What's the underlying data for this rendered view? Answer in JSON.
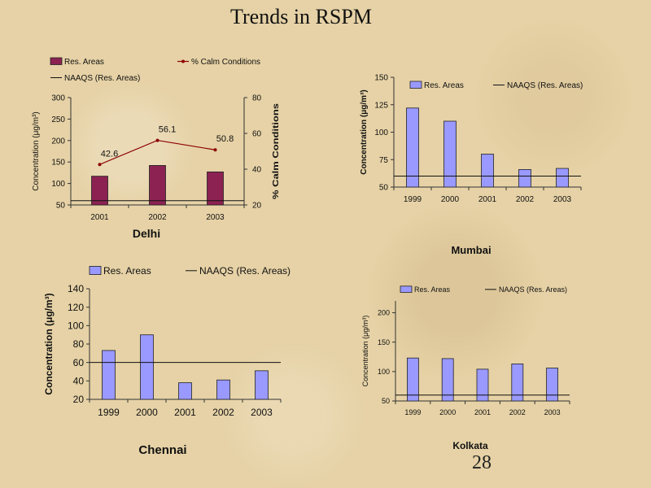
{
  "title": "Trends in RSPM",
  "page_number": "28",
  "colors": {
    "delhi_bar": "#8b2252",
    "blue_bar": "#9999ff",
    "line": "#8b0000"
  },
  "chart_data": [
    {
      "id": "delhi",
      "type": "bar",
      "city": "Delhi",
      "categories": [
        "2001",
        "2002",
        "2003"
      ],
      "series": [
        {
          "name": "Res. Areas",
          "type": "bar",
          "values": [
            117,
            142,
            127
          ]
        },
        {
          "name": "% Calm Conditions",
          "type": "line",
          "axis": "right",
          "values": [
            42.6,
            56.1,
            50.8
          ]
        },
        {
          "name": "NAAQS (Res. Areas)",
          "type": "hline",
          "value": 60
        }
      ],
      "ylabel": "Concentration (μg/m³)",
      "ylabel_right": "% Calm Conditions",
      "ylim": [
        50,
        300
      ],
      "yticks": [
        50,
        100,
        150,
        200,
        250,
        300
      ],
      "ylim_right": [
        20,
        80
      ],
      "yticks_right": [
        20,
        40,
        60,
        80
      ]
    },
    {
      "id": "mumbai",
      "type": "bar",
      "city": "Mumbai",
      "categories": [
        "1999",
        "2000",
        "2001",
        "2002",
        "2003"
      ],
      "series": [
        {
          "name": "Res. Areas",
          "type": "bar",
          "values": [
            122,
            110,
            80,
            66,
            67
          ]
        },
        {
          "name": "NAAQS (Res. Areas)",
          "type": "hline",
          "value": 60
        }
      ],
      "ylabel": "Concentration (μg/m³)",
      "ylim": [
        50,
        150
      ],
      "yticks": [
        50,
        75,
        100,
        125,
        150
      ]
    },
    {
      "id": "chennai",
      "type": "bar",
      "city": "Chennai",
      "categories": [
        "1999",
        "2000",
        "2001",
        "2002",
        "2003"
      ],
      "series": [
        {
          "name": "Res. Areas",
          "type": "bar",
          "values": [
            73,
            90,
            38,
            41,
            51
          ]
        },
        {
          "name": "NAAQS (Res. Areas)",
          "type": "hline",
          "value": 60
        }
      ],
      "ylabel": "Concentration (μg/m³)",
      "ylim": [
        20,
        140
      ],
      "yticks": [
        20,
        40,
        60,
        80,
        100,
        120,
        140
      ]
    },
    {
      "id": "kolkata",
      "type": "bar",
      "city": "Kolkata",
      "categories": [
        "1999",
        "2000",
        "2001",
        "2002",
        "2003"
      ],
      "series": [
        {
          "name": "Res. Areas",
          "type": "bar",
          "values": [
            123,
            122,
            104,
            113,
            106
          ]
        },
        {
          "name": "NAAQS (Res. Areas)",
          "type": "hline",
          "value": 60
        }
      ],
      "ylabel": "Concentration (μg/m³)",
      "ylim": [
        50,
        220
      ],
      "yticks": [
        50,
        100,
        150,
        200
      ]
    }
  ]
}
